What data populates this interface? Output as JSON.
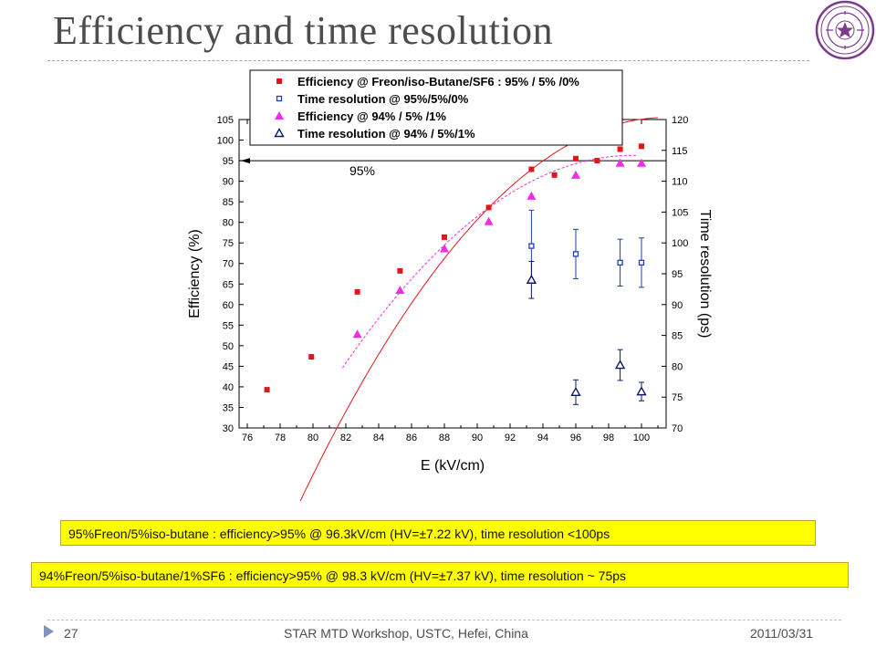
{
  "slide": {
    "title": "Efficiency and time resolution",
    "notes": [
      "95%Freon/5%iso-butane : efficiency>95% @ 96.3kV/cm (HV=±7.22 kV), time resolution <100ps",
      "94%Freon/5%iso-butane/1%SF6 : efficiency>95% @ 98.3 kV/cm (HV=±7.37 kV), time resolution ~ 75ps"
    ],
    "footer": {
      "page": "27",
      "event": "STAR MTD Workshop, USTC, Hefei, China",
      "date": "2011/03/31"
    },
    "colors": {
      "title": "#4d4d4d",
      "note_bg": "#ffff00",
      "logo": "#7b3a8c"
    }
  },
  "chart_data": {
    "type": "scatter",
    "xlabel": "E (kV/cm)",
    "ylabel": "Efficiency (%)",
    "y2label": "Time resolution (ps)",
    "xlim": [
      75.5,
      101.5
    ],
    "ylim": [
      30,
      105
    ],
    "y2lim": [
      70,
      120
    ],
    "xticks": [
      76,
      78,
      80,
      82,
      84,
      86,
      88,
      90,
      92,
      94,
      96,
      98,
      100
    ],
    "yticks": [
      30,
      35,
      40,
      45,
      50,
      55,
      60,
      65,
      70,
      75,
      80,
      85,
      90,
      95,
      100,
      105
    ],
    "y2ticks": [
      70,
      75,
      80,
      85,
      90,
      95,
      100,
      105,
      110,
      115,
      120
    ],
    "threshold": {
      "y": 95,
      "label": "95%"
    },
    "legend_position": "top",
    "series": [
      {
        "name": "Efficiency  @ Freon/iso-Butane/SF6 : 95% / 5% /0%",
        "marker": "square-filled",
        "color": "#e3151a",
        "axis": "left",
        "x": [
          77.2,
          79.9,
          82.7,
          85.3,
          88.0,
          90.7,
          93.3,
          94.7,
          96.0,
          97.3,
          98.7,
          100.0
        ],
        "y": [
          39.3,
          47.3,
          63.1,
          68.2,
          76.4,
          83.6,
          92.9,
          91.5,
          95.5,
          95.0,
          97.8,
          98.5
        ]
      },
      {
        "name": "Time resolution @ 95%/5%/0%",
        "marker": "square-open",
        "color": "#1f3fb8",
        "axis": "right",
        "x": [
          93.3,
          96.0,
          98.7,
          100.0
        ],
        "y": [
          99.5,
          98.2,
          96.8,
          96.8
        ],
        "err": [
          5.8,
          4.0,
          3.8,
          4.0
        ]
      },
      {
        "name": "Efficiency  @ 94% / 5% /1%",
        "marker": "triangle-filled",
        "color": "#ee2ee6",
        "axis": "left",
        "x": [
          82.7,
          85.3,
          88.0,
          90.7,
          93.3,
          96.0,
          98.7,
          100.0
        ],
        "y": [
          52.8,
          63.5,
          73.6,
          80.2,
          86.4,
          91.5,
          94.4,
          94.4
        ]
      },
      {
        "name": "Time resolution @ 94% / 5%/1%",
        "marker": "triangle-open",
        "color": "#0b1a66",
        "axis": "right",
        "x": [
          93.3,
          96.0,
          98.7,
          100.0
        ],
        "y": [
          94.0,
          75.8,
          80.2,
          75.9
        ],
        "err": [
          3.0,
          2.0,
          2.5,
          1.5
        ]
      }
    ],
    "fits": [
      {
        "series": 0,
        "color": "#e3151a",
        "style": "solid",
        "x_range": [
          76.5,
          101
        ],
        "model": "y = 105.5 - 0.188 * (101.5 - x)^2"
      },
      {
        "series": 2,
        "color": "#ee2ee6",
        "style": "dashed",
        "x_range": [
          81.8,
          100
        ],
        "model": "y = 96.3 - 0.165 * (99.5 - x)^2"
      }
    ]
  }
}
